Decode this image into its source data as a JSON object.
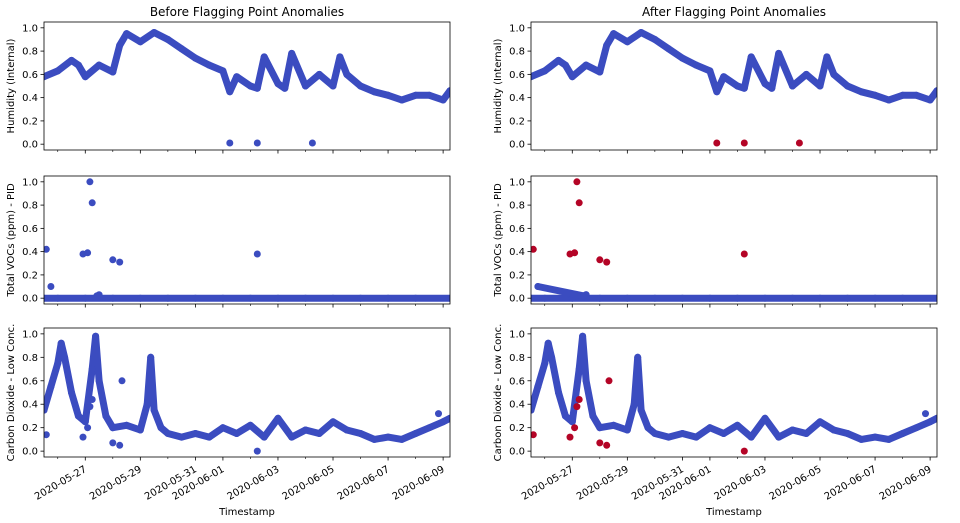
{
  "chart_data": [
    {
      "type": "scatter",
      "title": "Before Flagging Point Anomalies",
      "ylabel": "Humidity (Internal)",
      "ylim": [
        -0.05,
        1.05
      ],
      "yticks": [
        "0.0",
        "0.2",
        "0.4",
        "0.6",
        "0.8",
        "1.0"
      ],
      "series": [
        {
          "color": "#3b4cc0",
          "role": "normal",
          "x": [
            "2020-05-25 12:00",
            "2020-05-26 00:00",
            "2020-05-26 12:00",
            "2020-05-26 18:00",
            "2020-05-27 00:00",
            "2020-05-27 12:00",
            "2020-05-28 00:00",
            "2020-05-28 06:00",
            "2020-05-28 12:00",
            "2020-05-29 00:00",
            "2020-05-29 12:00",
            "2020-05-30 00:00",
            "2020-05-30 12:00",
            "2020-05-31 00:00",
            "2020-05-31 12:00",
            "2020-06-01 00:00",
            "2020-06-01 06:00",
            "2020-06-01 12:00",
            "2020-06-02 00:00",
            "2020-06-02 06:00",
            "2020-06-02 12:00",
            "2020-06-03 00:00",
            "2020-06-03 06:00",
            "2020-06-03 12:00",
            "2020-06-04 00:00",
            "2020-06-04 12:00",
            "2020-06-05 00:00",
            "2020-06-05 06:00",
            "2020-06-05 12:00",
            "2020-06-06 00:00",
            "2020-06-06 12:00",
            "2020-06-07 00:00",
            "2020-06-07 12:00",
            "2020-06-08 00:00",
            "2020-06-08 12:00",
            "2020-06-09 00:00",
            "2020-06-09 06:00"
          ],
          "y": [
            0.58,
            0.63,
            0.72,
            0.68,
            0.58,
            0.68,
            0.62,
            0.85,
            0.95,
            0.88,
            0.96,
            0.9,
            0.82,
            0.74,
            0.68,
            0.63,
            0.45,
            0.58,
            0.5,
            0.48,
            0.75,
            0.52,
            0.48,
            0.78,
            0.5,
            0.6,
            0.5,
            0.75,
            0.6,
            0.5,
            0.45,
            0.42,
            0.38,
            0.42,
            0.42,
            0.38,
            0.46
          ]
        },
        {
          "color": "#3b4cc0",
          "role": "anomaly",
          "x": [
            "2020-06-01 06:00",
            "2020-06-02 06:00",
            "2020-06-04 06:00"
          ],
          "y": [
            0.01,
            0.01,
            0.01
          ]
        }
      ]
    },
    {
      "type": "scatter",
      "title": "After Flagging Point Anomalies",
      "ylabel": "Humidity (Internal)",
      "ylim": [
        -0.05,
        1.05
      ],
      "yticks": [
        "0.0",
        "0.2",
        "0.4",
        "0.6",
        "0.8",
        "1.0"
      ],
      "series": [
        {
          "color": "#3b4cc0",
          "role": "normal",
          "x": [
            "2020-05-25 12:00",
            "2020-05-26 00:00",
            "2020-05-26 12:00",
            "2020-05-26 18:00",
            "2020-05-27 00:00",
            "2020-05-27 12:00",
            "2020-05-28 00:00",
            "2020-05-28 06:00",
            "2020-05-28 12:00",
            "2020-05-29 00:00",
            "2020-05-29 12:00",
            "2020-05-30 00:00",
            "2020-05-30 12:00",
            "2020-05-31 00:00",
            "2020-05-31 12:00",
            "2020-06-01 00:00",
            "2020-06-01 06:00",
            "2020-06-01 12:00",
            "2020-06-02 00:00",
            "2020-06-02 06:00",
            "2020-06-02 12:00",
            "2020-06-03 00:00",
            "2020-06-03 06:00",
            "2020-06-03 12:00",
            "2020-06-04 00:00",
            "2020-06-04 12:00",
            "2020-06-05 00:00",
            "2020-06-05 06:00",
            "2020-06-05 12:00",
            "2020-06-06 00:00",
            "2020-06-06 12:00",
            "2020-06-07 00:00",
            "2020-06-07 12:00",
            "2020-06-08 00:00",
            "2020-06-08 12:00",
            "2020-06-09 00:00",
            "2020-06-09 06:00"
          ],
          "y": [
            0.58,
            0.63,
            0.72,
            0.68,
            0.58,
            0.68,
            0.62,
            0.85,
            0.95,
            0.88,
            0.96,
            0.9,
            0.82,
            0.74,
            0.68,
            0.63,
            0.45,
            0.58,
            0.5,
            0.48,
            0.75,
            0.52,
            0.48,
            0.78,
            0.5,
            0.6,
            0.5,
            0.75,
            0.6,
            0.5,
            0.45,
            0.42,
            0.38,
            0.42,
            0.42,
            0.38,
            0.46
          ]
        },
        {
          "color": "#b40426",
          "role": "anomaly",
          "x": [
            "2020-06-01 06:00",
            "2020-06-02 06:00",
            "2020-06-04 06:00"
          ],
          "y": [
            0.01,
            0.01,
            0.01
          ]
        }
      ]
    },
    {
      "type": "scatter",
      "ylabel": "Total VOCs (ppm) - PID",
      "ylim": [
        -0.05,
        1.05
      ],
      "yticks": [
        "0.0",
        "0.2",
        "0.4",
        "0.6",
        "0.8",
        "1.0"
      ],
      "series": [
        {
          "color": "#3b4cc0",
          "role": "normal",
          "x": [
            "2020-05-25 12:00",
            "2020-05-26 00:00",
            "2020-05-27 00:00",
            "2020-05-28 00:00",
            "2020-05-29 00:00",
            "2020-05-30 00:00",
            "2020-05-31 00:00",
            "2020-06-01 00:00",
            "2020-06-02 00:00",
            "2020-06-03 00:00",
            "2020-06-04 00:00",
            "2020-06-05 00:00",
            "2020-06-06 00:00",
            "2020-06-07 00:00",
            "2020-06-08 00:00",
            "2020-06-09 06:00"
          ],
          "y": [
            0,
            0,
            0,
            0,
            0,
            0,
            0,
            0,
            0,
            0,
            0,
            0,
            0,
            0,
            0,
            0
          ]
        },
        {
          "color": "#3b4cc0",
          "role": "anomaly",
          "x": [
            "2020-05-25 14:00",
            "2020-05-25 18:00",
            "2020-05-26 22:00",
            "2020-05-27 02:00",
            "2020-05-27 04:00",
            "2020-05-27 06:00",
            "2020-05-27 10:00",
            "2020-05-27 12:00",
            "2020-05-28 00:00",
            "2020-05-28 06:00",
            "2020-06-02 06:00"
          ],
          "y": [
            0.42,
            0.1,
            0.38,
            0.39,
            1.0,
            0.82,
            0.02,
            0.03,
            0.33,
            0.31,
            0.38
          ]
        }
      ]
    },
    {
      "type": "scatter",
      "ylabel": "Total VOCs (ppm) - PID",
      "ylim": [
        -0.05,
        1.05
      ],
      "yticks": [
        "0.0",
        "0.2",
        "0.4",
        "0.6",
        "0.8",
        "1.0"
      ],
      "series": [
        {
          "color": "#3b4cc0",
          "role": "normal",
          "x": [
            "2020-05-25 12:00",
            "2020-05-26 00:00",
            "2020-05-27 00:00",
            "2020-05-28 00:00",
            "2020-05-29 00:00",
            "2020-05-30 00:00",
            "2020-05-31 00:00",
            "2020-06-01 00:00",
            "2020-06-02 00:00",
            "2020-06-03 00:00",
            "2020-06-04 00:00",
            "2020-06-05 00:00",
            "2020-06-06 00:00",
            "2020-06-07 00:00",
            "2020-06-08 00:00",
            "2020-06-09 06:00"
          ],
          "y": [
            0,
            0,
            0,
            0,
            0,
            0,
            0,
            0,
            0,
            0,
            0,
            0,
            0,
            0,
            0,
            0
          ]
        },
        {
          "color": "#3b4cc0",
          "role": "normal",
          "x": [
            "2020-05-25 18:00",
            "2020-05-27 10:00",
            "2020-05-27 12:00"
          ],
          "y": [
            0.1,
            0.02,
            0.03
          ]
        },
        {
          "color": "#b40426",
          "role": "anomaly",
          "x": [
            "2020-05-25 14:00",
            "2020-05-26 22:00",
            "2020-05-27 02:00",
            "2020-05-27 04:00",
            "2020-05-27 06:00",
            "2020-05-28 00:00",
            "2020-05-28 06:00",
            "2020-06-02 06:00"
          ],
          "y": [
            0.42,
            0.38,
            0.39,
            1.0,
            0.82,
            0.33,
            0.31,
            0.38
          ]
        }
      ]
    },
    {
      "type": "scatter",
      "ylabel": "Carbon Dioxide - Low Conc.",
      "xlabel": "Timestamp",
      "ylim": [
        -0.05,
        1.05
      ],
      "yticks": [
        "0.0",
        "0.2",
        "0.4",
        "0.6",
        "0.8",
        "1.0"
      ],
      "xticks": [
        "2020-05-27",
        "2020-05-29",
        "2020-05-31",
        "2020-06-01",
        "2020-06-03",
        "2020-06-05",
        "2020-06-07",
        "2020-06-09"
      ],
      "series": [
        {
          "color": "#3b4cc0",
          "role": "normal",
          "x": [
            "2020-05-25 12:00",
            "2020-05-25 18:00",
            "2020-05-26 00:00",
            "2020-05-26 03:00",
            "2020-05-26 06:00",
            "2020-05-26 12:00",
            "2020-05-26 18:00",
            "2020-05-27 00:00",
            "2020-05-27 06:00",
            "2020-05-27 09:00",
            "2020-05-27 12:00",
            "2020-05-27 18:00",
            "2020-05-28 00:00",
            "2020-05-28 12:00",
            "2020-05-29 00:00",
            "2020-05-29 06:00",
            "2020-05-29 09:00",
            "2020-05-29 12:00",
            "2020-05-29 18:00",
            "2020-05-30 00:00",
            "2020-05-30 12:00",
            "2020-05-31 00:00",
            "2020-05-31 12:00",
            "2020-06-01 00:00",
            "2020-06-01 12:00",
            "2020-06-02 00:00",
            "2020-06-02 12:00",
            "2020-06-03 00:00",
            "2020-06-03 12:00",
            "2020-06-04 00:00",
            "2020-06-04 12:00",
            "2020-06-05 00:00",
            "2020-06-05 12:00",
            "2020-06-06 00:00",
            "2020-06-06 12:00",
            "2020-06-07 00:00",
            "2020-06-07 12:00",
            "2020-06-08 00:00",
            "2020-06-08 12:00",
            "2020-06-09 00:00",
            "2020-06-09 06:00"
          ],
          "y": [
            0.35,
            0.55,
            0.75,
            0.92,
            0.8,
            0.5,
            0.3,
            0.25,
            0.7,
            0.98,
            0.6,
            0.3,
            0.2,
            0.22,
            0.18,
            0.4,
            0.8,
            0.35,
            0.2,
            0.15,
            0.12,
            0.15,
            0.12,
            0.2,
            0.15,
            0.22,
            0.12,
            0.28,
            0.12,
            0.18,
            0.15,
            0.25,
            0.18,
            0.15,
            0.1,
            0.12,
            0.1,
            0.15,
            0.2,
            0.25,
            0.28
          ]
        },
        {
          "color": "#3b4cc0",
          "role": "anomaly",
          "x": [
            "2020-05-25 14:00",
            "2020-05-26 22:00",
            "2020-05-27 02:00",
            "2020-05-27 04:00",
            "2020-05-27 06:00",
            "2020-05-28 00:00",
            "2020-05-28 06:00",
            "2020-05-28 08:00",
            "2020-06-02 06:00",
            "2020-06-08 20:00"
          ],
          "y": [
            0.14,
            0.12,
            0.2,
            0.38,
            0.44,
            0.07,
            0.05,
            0.6,
            0.0,
            0.32
          ]
        }
      ]
    },
    {
      "type": "scatter",
      "ylabel": "Carbon Dioxide - Low Conc.",
      "xlabel": "Timestamp",
      "ylim": [
        -0.05,
        1.05
      ],
      "yticks": [
        "0.0",
        "0.2",
        "0.4",
        "0.6",
        "0.8",
        "1.0"
      ],
      "xticks": [
        "2020-05-27",
        "2020-05-29",
        "2020-05-31",
        "2020-06-01",
        "2020-06-03",
        "2020-06-05",
        "2020-06-07",
        "2020-06-09"
      ],
      "series": [
        {
          "color": "#3b4cc0",
          "role": "normal",
          "x": [
            "2020-05-25 12:00",
            "2020-05-25 18:00",
            "2020-05-26 00:00",
            "2020-05-26 03:00",
            "2020-05-26 06:00",
            "2020-05-26 12:00",
            "2020-05-26 18:00",
            "2020-05-27 00:00",
            "2020-05-27 06:00",
            "2020-05-27 09:00",
            "2020-05-27 12:00",
            "2020-05-27 18:00",
            "2020-05-28 00:00",
            "2020-05-28 12:00",
            "2020-05-29 00:00",
            "2020-05-29 06:00",
            "2020-05-29 09:00",
            "2020-05-29 12:00",
            "2020-05-29 18:00",
            "2020-05-30 00:00",
            "2020-05-30 12:00",
            "2020-05-31 00:00",
            "2020-05-31 12:00",
            "2020-06-01 00:00",
            "2020-06-01 12:00",
            "2020-06-02 00:00",
            "2020-06-02 12:00",
            "2020-06-03 00:00",
            "2020-06-03 12:00",
            "2020-06-04 00:00",
            "2020-06-04 12:00",
            "2020-06-05 00:00",
            "2020-06-05 12:00",
            "2020-06-06 00:00",
            "2020-06-06 12:00",
            "2020-06-07 00:00",
            "2020-06-07 12:00",
            "2020-06-08 00:00",
            "2020-06-08 12:00",
            "2020-06-09 00:00",
            "2020-06-09 06:00"
          ],
          "y": [
            0.35,
            0.55,
            0.75,
            0.92,
            0.8,
            0.5,
            0.3,
            0.25,
            0.7,
            0.98,
            0.6,
            0.3,
            0.2,
            0.22,
            0.18,
            0.4,
            0.8,
            0.35,
            0.2,
            0.15,
            0.12,
            0.15,
            0.12,
            0.2,
            0.15,
            0.22,
            0.12,
            0.28,
            0.12,
            0.18,
            0.15,
            0.25,
            0.18,
            0.15,
            0.1,
            0.12,
            0.1,
            0.15,
            0.2,
            0.25,
            0.28
          ]
        },
        {
          "color": "#3b4cc0",
          "role": "normal",
          "x": [
            "2020-06-08 20:00"
          ],
          "y": [
            0.32
          ]
        },
        {
          "color": "#b40426",
          "role": "anomaly",
          "x": [
            "2020-05-25 14:00",
            "2020-05-26 22:00",
            "2020-05-27 02:00",
            "2020-05-27 04:00",
            "2020-05-27 06:00",
            "2020-05-28 00:00",
            "2020-05-28 06:00",
            "2020-05-28 08:00",
            "2020-06-02 06:00"
          ],
          "y": [
            0.14,
            0.12,
            0.2,
            0.38,
            0.44,
            0.07,
            0.05,
            0.6,
            0.0
          ]
        }
      ]
    }
  ]
}
